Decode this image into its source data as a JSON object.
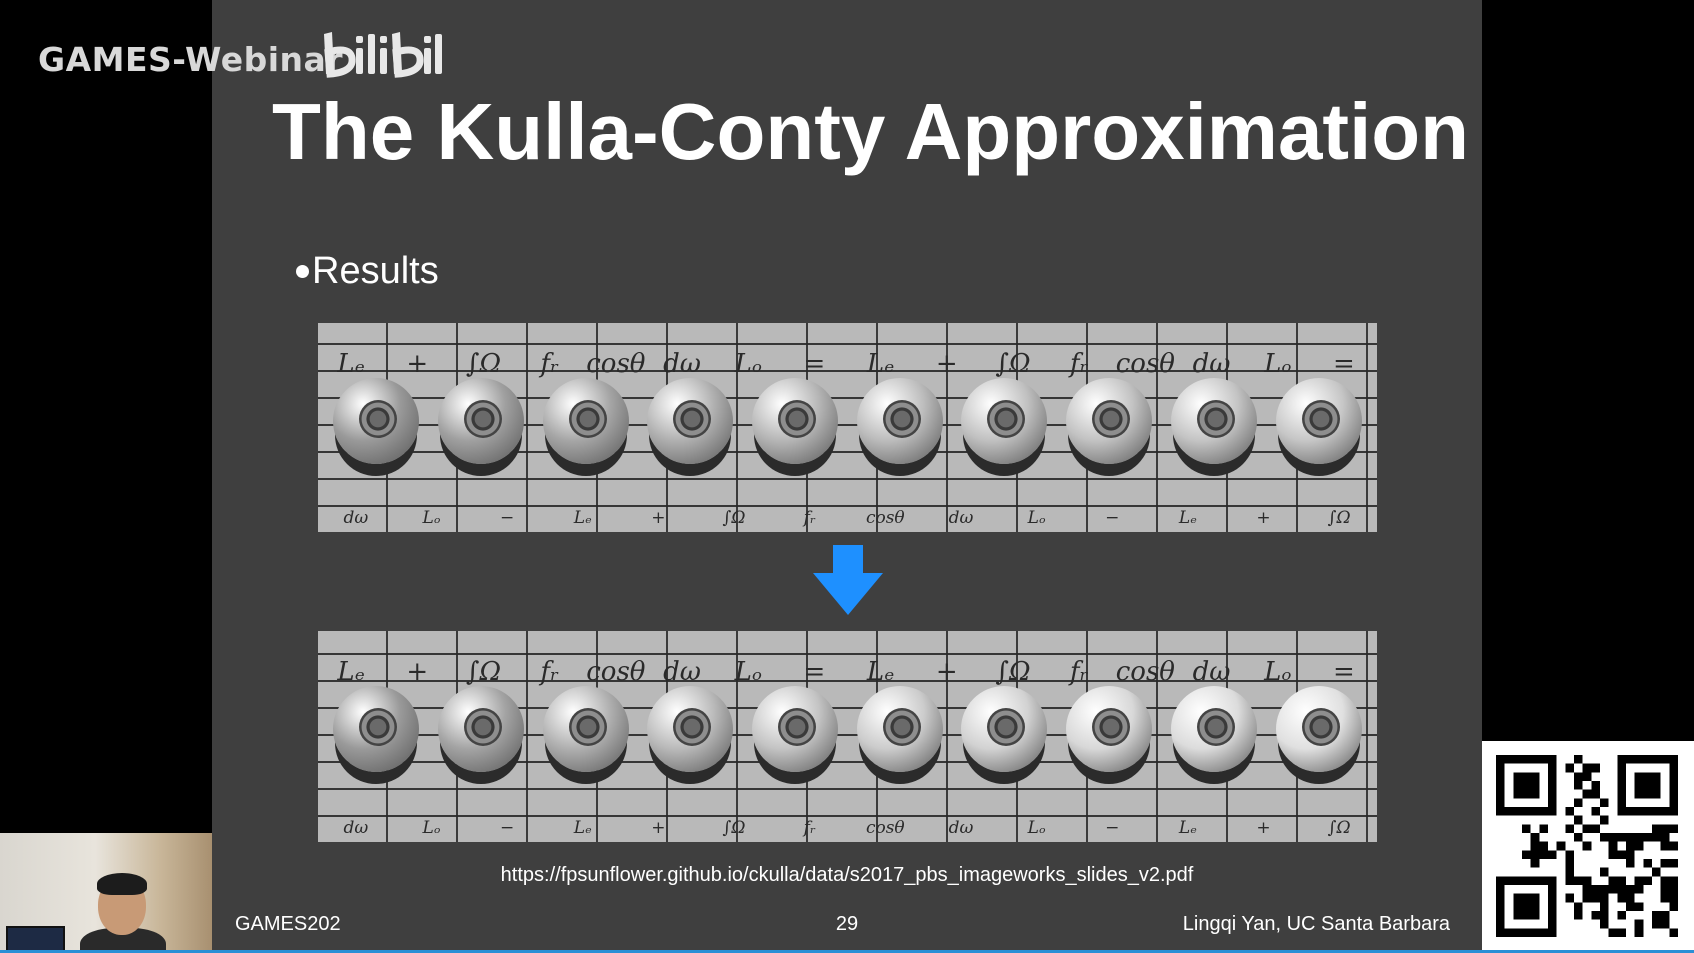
{
  "overlay": {
    "watermark": "GAMES-Webinar",
    "brand_logo": "bilibili"
  },
  "slide": {
    "title": "The Kulla-Conty Approximation",
    "bullet": "Results",
    "render_symbols_upper": [
      "Lₑ",
      "+",
      "∫Ω",
      "fᵣ",
      "cosθ",
      "dω",
      "Lₒ",
      "=",
      "Lₑ",
      "+",
      "∫Ω",
      "fᵣ",
      "cosθ",
      "dω",
      "Lₒ",
      "="
    ],
    "render_symbols_lower": [
      "dω",
      "Lₒ",
      "−",
      "Lₑ",
      "+",
      "∫Ω",
      "fᵣ",
      "cosθ",
      "dω",
      "Lₒ",
      "−",
      "Lₑ",
      "+",
      "∫Ω"
    ],
    "arrow_icon": "down-arrow-icon",
    "arrow_color": "#1e90ff",
    "source_url": "https://fpsunflower.github.io/ckulla/data/s2017_pbs_imageworks_slides_v2.pdf",
    "footer_left": "GAMES202",
    "page_number": "29",
    "footer_right": "Lingqi Yan, UC Santa Barbara"
  },
  "spheres": {
    "top_row": [
      "#9a9a9a",
      "#a0a0a0",
      "#a6a6a6",
      "#b0b0b0",
      "#b6b6b6",
      "#bcbcbc",
      "#c0c0c0",
      "#c2c2c2",
      "#c4c4c4",
      "#c6c6c6"
    ],
    "bottom_row": [
      "#9a9a9a",
      "#a4a4a4",
      "#b0b0b0",
      "#bababa",
      "#c4c4c4",
      "#cccccc",
      "#d2d2d2",
      "#d8d8d8",
      "#dcdcdc",
      "#e0e0e0"
    ]
  }
}
